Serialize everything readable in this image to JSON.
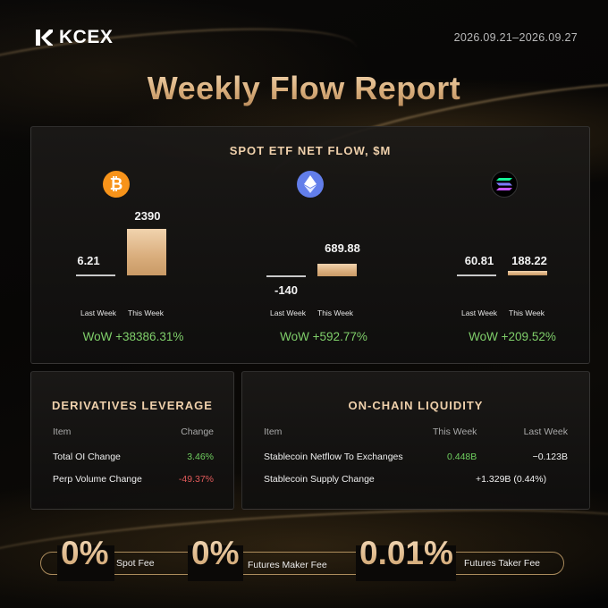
{
  "header": {
    "brand": "KCEX",
    "date_range": "2026.09.21–2026.09.27",
    "title": "Weekly Flow Report"
  },
  "etf": {
    "title": "SPOT ETF NET FLOW, $M",
    "last_week_label": "Last Week",
    "this_week_label": "This Week",
    "coins": [
      {
        "icon": "bitcoin-icon",
        "last_week": "6.21",
        "this_week": "2390",
        "wow": "WoW +38386.31%"
      },
      {
        "icon": "ethereum-icon",
        "last_week": "-140",
        "this_week": "689.88",
        "wow": "WoW +592.77%"
      },
      {
        "icon": "solana-icon",
        "last_week": "60.81",
        "this_week": "188.22",
        "wow": "WoW +209.52%"
      }
    ]
  },
  "chart_data": [
    {
      "type": "bar",
      "categories": [
        "Last Week",
        "This Week"
      ],
      "series": [
        {
          "name": "BTC",
          "values": [
            6.21,
            2390
          ]
        }
      ]
    },
    {
      "type": "bar",
      "categories": [
        "Last Week",
        "This Week"
      ],
      "series": [
        {
          "name": "ETH",
          "values": [
            -140,
            689.88
          ]
        }
      ]
    },
    {
      "type": "bar",
      "categories": [
        "Last Week",
        "This Week"
      ],
      "series": [
        {
          "name": "SOL",
          "values": [
            60.81,
            188.22
          ]
        }
      ]
    }
  ],
  "derivatives": {
    "title": "DERIVATIVES LEVERAGE",
    "headers": {
      "item": "Item",
      "change": "Change"
    },
    "rows": [
      {
        "item": "Total OI Change",
        "change": "3.46%"
      },
      {
        "item": "Perp Volume Change",
        "change": "-49.37%"
      }
    ]
  },
  "onchain": {
    "title": "ON-CHAIN LIQUIDITY",
    "headers": {
      "item": "Item",
      "this_week": "This Week",
      "last_week": "Last Week"
    },
    "rows": [
      {
        "item": "Stablecoin Netflow To Exchanges",
        "this_week": "0.448B",
        "last_week": "−0.123B"
      },
      {
        "item": "Stablecoin Supply Change",
        "value": "+1.329B (0.44%)"
      }
    ]
  },
  "fees": [
    {
      "value": "0%",
      "label": "Spot Fee"
    },
    {
      "value": "0%",
      "label": "Futures Maker Fee"
    },
    {
      "value": "0.01%",
      "label": "Futures Taker Fee"
    }
  ],
  "colors": {
    "gold": "#e3bf93",
    "positive": "#7fcf6a",
    "negative": "#e05a5a",
    "background": "#050505"
  }
}
